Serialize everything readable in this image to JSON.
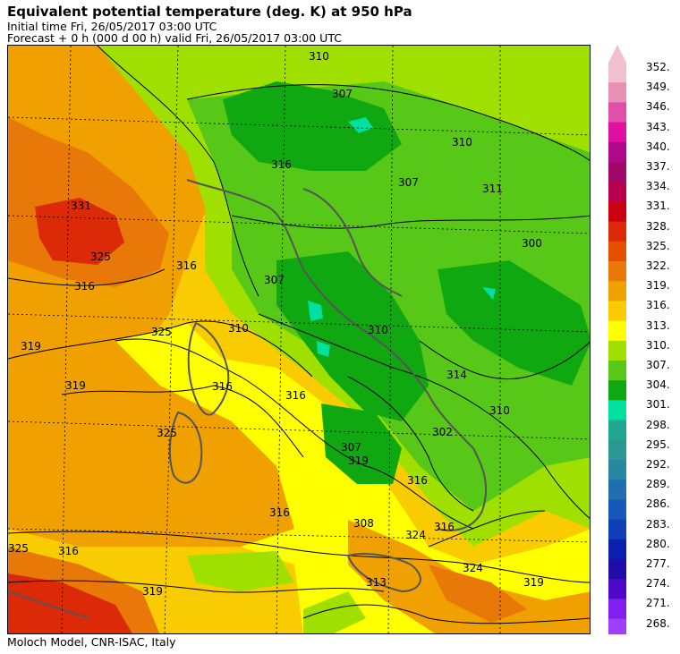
{
  "header": {
    "title": "Equivalent potential temperature (deg. K) at 950 hPa",
    "initial_time": "Initial time  Fri, 26/05/2017  03:00 UTC",
    "forecast": "Forecast  +   0 h  (000 d 00 h)  valid Fri, 26/05/2017 03:00 UTC"
  },
  "footer": {
    "credit": "Moloch Model, CNR-ISAC, Italy"
  },
  "colorbar": {
    "labels": [
      "352.",
      "349.",
      "346.",
      "343.",
      "340.",
      "337.",
      "334.",
      "331.",
      "328.",
      "325.",
      "322.",
      "319.",
      "316.",
      "313.",
      "310.",
      "307.",
      "304.",
      "301.",
      "298.",
      "295.",
      "292.",
      "289.",
      "286.",
      "283.",
      "280.",
      "277.",
      "274.",
      "271.",
      "268."
    ],
    "colors": [
      "#f0c0cc",
      "#e890b4",
      "#e050a8",
      "#e010a0",
      "#b00888",
      "#a0086c",
      "#b8004c",
      "#cc0010",
      "#dc2a08",
      "#e45000",
      "#e87808",
      "#f0a000",
      "#f8cc00",
      "#ffff00",
      "#a0e000",
      "#58c818",
      "#10a810",
      "#00e0a0",
      "#20a890",
      "#289890",
      "#2888a0",
      "#2070b0",
      "#1858b8",
      "#1040b8",
      "#0c20b0",
      "#200ca8",
      "#5008c8",
      "#8020f0",
      "#a040ff"
    ]
  },
  "map": {
    "contour_labels": [
      "310",
      "307",
      "310",
      "311",
      "300",
      "307",
      "316",
      "325",
      "331",
      "316",
      "316",
      "325",
      "310",
      "307",
      "310",
      "319",
      "316",
      "316",
      "319",
      "314",
      "310",
      "302",
      "325",
      "307",
      "319",
      "316",
      "316",
      "308",
      "316",
      "324",
      "324",
      "313",
      "319",
      "316",
      "325",
      "319"
    ],
    "colors": {
      "deep_orange": "#dc2a08",
      "orange": "#e87808",
      "light_orange": "#f0a000",
      "gold": "#f8cc00",
      "yellow": "#ffff00",
      "lime": "#a0e000",
      "green": "#58c818",
      "dark_green": "#10a810",
      "cyan": "#00e0a0"
    }
  }
}
